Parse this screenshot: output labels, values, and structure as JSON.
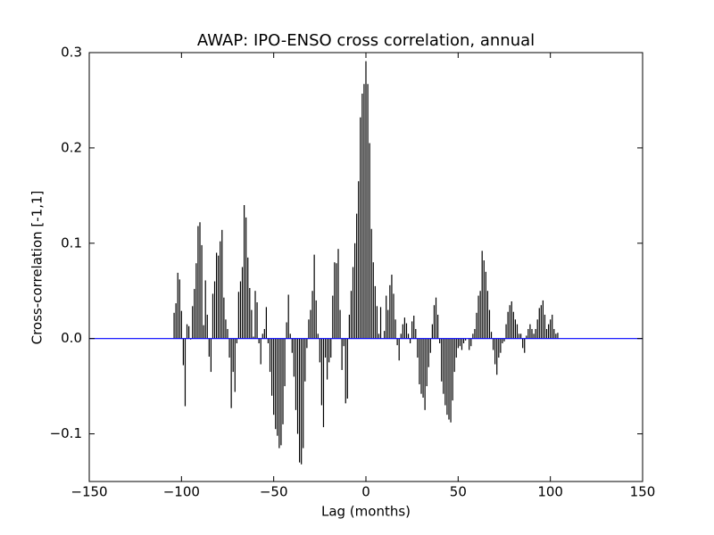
{
  "chart_data": {
    "type": "xcorr",
    "title": "AWAP: IPO-ENSO cross correlation, annual",
    "xlabel": "Lag (months)",
    "ylabel": "Cross-correlation [-1,1]",
    "color": "#000000",
    "baseline_color": "#0000ff",
    "xlim": [
      -150,
      150
    ],
    "ylim": [
      -0.15,
      0.3
    ],
    "xticks": [
      {
        "value": -150,
        "label": "−150"
      },
      {
        "value": -100,
        "label": "−100"
      },
      {
        "value": -50,
        "label": "−50"
      },
      0,
      50,
      100,
      150
    ],
    "yticks": [
      {
        "value": -0.1,
        "label": "−0.1"
      },
      {
        "value": 0,
        "label": "0.0"
      },
      0.1,
      0.2,
      0.3
    ],
    "x": [
      -104,
      -103,
      -102,
      -101,
      -100,
      -99,
      -98,
      -97,
      -96,
      -95,
      -94,
      -93,
      -92,
      -91,
      -90,
      -89,
      -88,
      -87,
      -86,
      -85,
      -84,
      -83,
      -82,
      -81,
      -80,
      -79,
      -78,
      -77,
      -76,
      -75,
      -74,
      -73,
      -72,
      -71,
      -70,
      -69,
      -68,
      -67,
      -66,
      -65,
      -64,
      -63,
      -62,
      -61,
      -60,
      -59,
      -58,
      -57,
      -56,
      -55,
      -54,
      -53,
      -52,
      -51,
      -50,
      -49,
      -48,
      -47,
      -46,
      -45,
      -44,
      -43,
      -42,
      -41,
      -40,
      -39,
      -38,
      -37,
      -36,
      -35,
      -34,
      -33,
      -32,
      -31,
      -30,
      -29,
      -28,
      -27,
      -26,
      -25,
      -24,
      -23,
      -22,
      -21,
      -20,
      -19,
      -18,
      -17,
      -16,
      -15,
      -14,
      -13,
      -12,
      -11,
      -10,
      -9,
      -8,
      -7,
      -6,
      -5,
      -4,
      -3,
      -2,
      -1,
      0,
      1,
      2,
      3,
      4,
      5,
      6,
      7,
      8,
      9,
      10,
      11,
      12,
      13,
      14,
      15,
      16,
      17,
      18,
      19,
      20,
      21,
      22,
      23,
      24,
      25,
      26,
      27,
      28,
      29,
      30,
      31,
      32,
      33,
      34,
      35,
      36,
      37,
      38,
      39,
      40,
      41,
      42,
      43,
      44,
      45,
      46,
      47,
      48,
      49,
      50,
      51,
      52,
      53,
      54,
      55,
      56,
      57,
      58,
      59,
      60,
      61,
      62,
      63,
      64,
      65,
      66,
      67,
      68,
      69,
      70,
      71,
      72,
      73,
      74,
      75,
      76,
      77,
      78,
      79,
      80,
      81,
      82,
      83,
      84,
      85,
      86,
      87,
      88,
      89,
      90,
      91,
      92,
      93,
      94,
      95,
      96,
      97,
      98,
      99,
      100,
      101,
      102,
      103,
      104
    ],
    "values": [
      0.027,
      0.037,
      0.069,
      0.062,
      0.029,
      -0.028,
      -0.071,
      0.015,
      0.013,
      -0.001,
      0.034,
      0.052,
      0.079,
      0.118,
      0.122,
      0.098,
      0.014,
      0.061,
      0.025,
      -0.019,
      -0.035,
      0.047,
      0.06,
      0.09,
      0.087,
      0.102,
      0.114,
      0.043,
      0.02,
      0.01,
      -0.02,
      -0.073,
      -0.035,
      -0.056,
      -0.005,
      0.049,
      0.06,
      0.075,
      0.14,
      0.127,
      0.085,
      0.053,
      0.03,
      0.002,
      0.05,
      0.038,
      -0.005,
      -0.027,
      0.005,
      0.01,
      0.033,
      -0.005,
      -0.035,
      -0.06,
      -0.08,
      -0.095,
      -0.102,
      -0.115,
      -0.112,
      -0.09,
      -0.05,
      0.017,
      0.046,
      0.005,
      -0.015,
      -0.04,
      -0.075,
      -0.1,
      -0.13,
      -0.132,
      -0.115,
      -0.045,
      -0.01,
      0.02,
      0.03,
      0.05,
      0.088,
      0.04,
      0.005,
      -0.025,
      -0.07,
      -0.093,
      -0.02,
      -0.043,
      -0.025,
      -0.02,
      0.045,
      0.08,
      0.079,
      0.094,
      0.03,
      -0.033,
      -0.008,
      -0.068,
      -0.063,
      0.025,
      0.05,
      0.075,
      0.1,
      0.131,
      0.165,
      0.232,
      0.257,
      0.267,
      0.291,
      0.267,
      0.205,
      0.115,
      0.08,
      0.055,
      0.034,
      0.005,
      0.033,
      0.0,
      0.008,
      0.045,
      0.03,
      0.056,
      0.067,
      0.047,
      0.02,
      -0.007,
      -0.023,
      0.005,
      0.015,
      0.022,
      0.016,
      0.005,
      -0.005,
      0.018,
      0.024,
      0.01,
      -0.02,
      -0.048,
      -0.058,
      -0.062,
      -0.075,
      -0.05,
      -0.03,
      -0.015,
      0.015,
      0.035,
      0.043,
      0.025,
      -0.005,
      -0.045,
      -0.058,
      -0.07,
      -0.08,
      -0.085,
      -0.088,
      -0.065,
      -0.035,
      -0.02,
      -0.01,
      -0.008,
      -0.012,
      -0.005,
      -0.002,
      0.0,
      -0.012,
      -0.008,
      0.005,
      0.01,
      0.027,
      0.045,
      0.05,
      0.092,
      0.082,
      0.07,
      0.05,
      0.03,
      0.007,
      -0.012,
      -0.027,
      -0.038,
      -0.02,
      -0.015,
      -0.005,
      -0.003,
      0.015,
      0.028,
      0.035,
      0.039,
      0.028,
      0.02,
      0.015,
      0.005,
      0.005,
      -0.01,
      -0.015,
      0.003,
      0.01,
      0.015,
      0.01,
      0.005,
      0.01,
      0.02,
      0.032,
      0.035,
      0.04,
      0.025,
      0.01,
      0.015,
      0.02,
      0.025,
      0.01,
      0.005,
      0.006
    ]
  }
}
